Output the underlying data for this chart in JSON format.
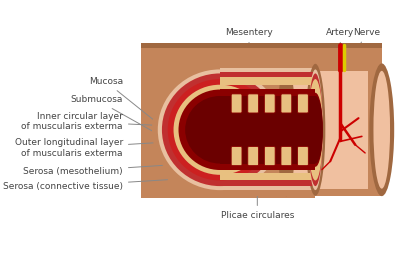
{
  "bg_color": "#ffffff",
  "colors": {
    "outer_tube": "#c4855a",
    "outer_tube_dark": "#a06840",
    "inner_pink": "#f0c0a0",
    "serosa_conn": "#c4855a",
    "serosa_meso": "#e8c0a0",
    "muscularis_outer": "#c03030",
    "muscularis_inner": "#cc2020",
    "submucosa": "#e8c080",
    "mucosa": "#8b0000",
    "lumen": "#6b0000",
    "lumen_dark": "#500000",
    "red_artery": "#cc0000",
    "yellow_nerve": "#ddcc00",
    "label_color": "#444444",
    "line_color": "#888888",
    "mesentery_top": "#c4855a"
  },
  "labels": {
    "mesentery": "Mesentery",
    "artery": "Artery",
    "nerve": "Nerve",
    "mucosa": "Mucosa",
    "submucosa": "Submucosa",
    "inner_circ": "Inner circular layer\nof muscularis exterma",
    "outer_long": "Outer longitudinal layer\nof muscularis exterma",
    "serosa_meso": "Serosa (mesothelium)",
    "serosa_conn": "Serosa (connective tissue)",
    "plicae": "Plicae circulares"
  },
  "font_size": 6.5
}
